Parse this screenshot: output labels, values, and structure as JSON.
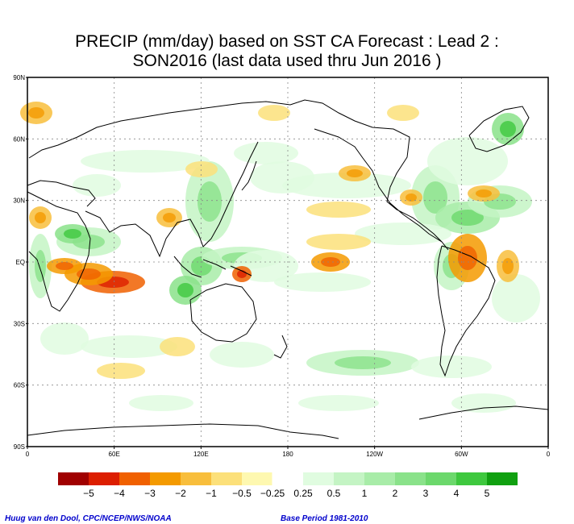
{
  "title_line1": "PRECIP (mm/day) based on SST CA Forecast : Lead 2 :",
  "title_line2": "SON2016 (last data used thru Jun 2016 )",
  "lat_labels": [
    "90N",
    "60N",
    "30N",
    "EQ",
    "30S",
    "60S",
    "90S"
  ],
  "lon_labels": [
    "0",
    "60E",
    "120E",
    "180",
    "120W",
    "60W",
    "0"
  ],
  "legend": {
    "colors": [
      "#a00000",
      "#dc1e00",
      "#f06000",
      "#f49a00",
      "#f8be3c",
      "#fce07a",
      "#fef8b0",
      "#ffffff",
      "#e0fce0",
      "#c4f4c4",
      "#a8eca8",
      "#8ae28a",
      "#6cd86c",
      "#3ec83e",
      "#10a010"
    ],
    "labels": [
      "−5",
      "−4",
      "−3",
      "−2",
      "−1",
      "−0.5",
      "−0.25",
      "0.25",
      "0.5",
      "1",
      "2",
      "3",
      "4",
      "5"
    ]
  },
  "credit_left": "Huug van den Dool, CPC/NCEP/NWS/NOAA",
  "credit_right": "Base Period 1981-2010"
}
